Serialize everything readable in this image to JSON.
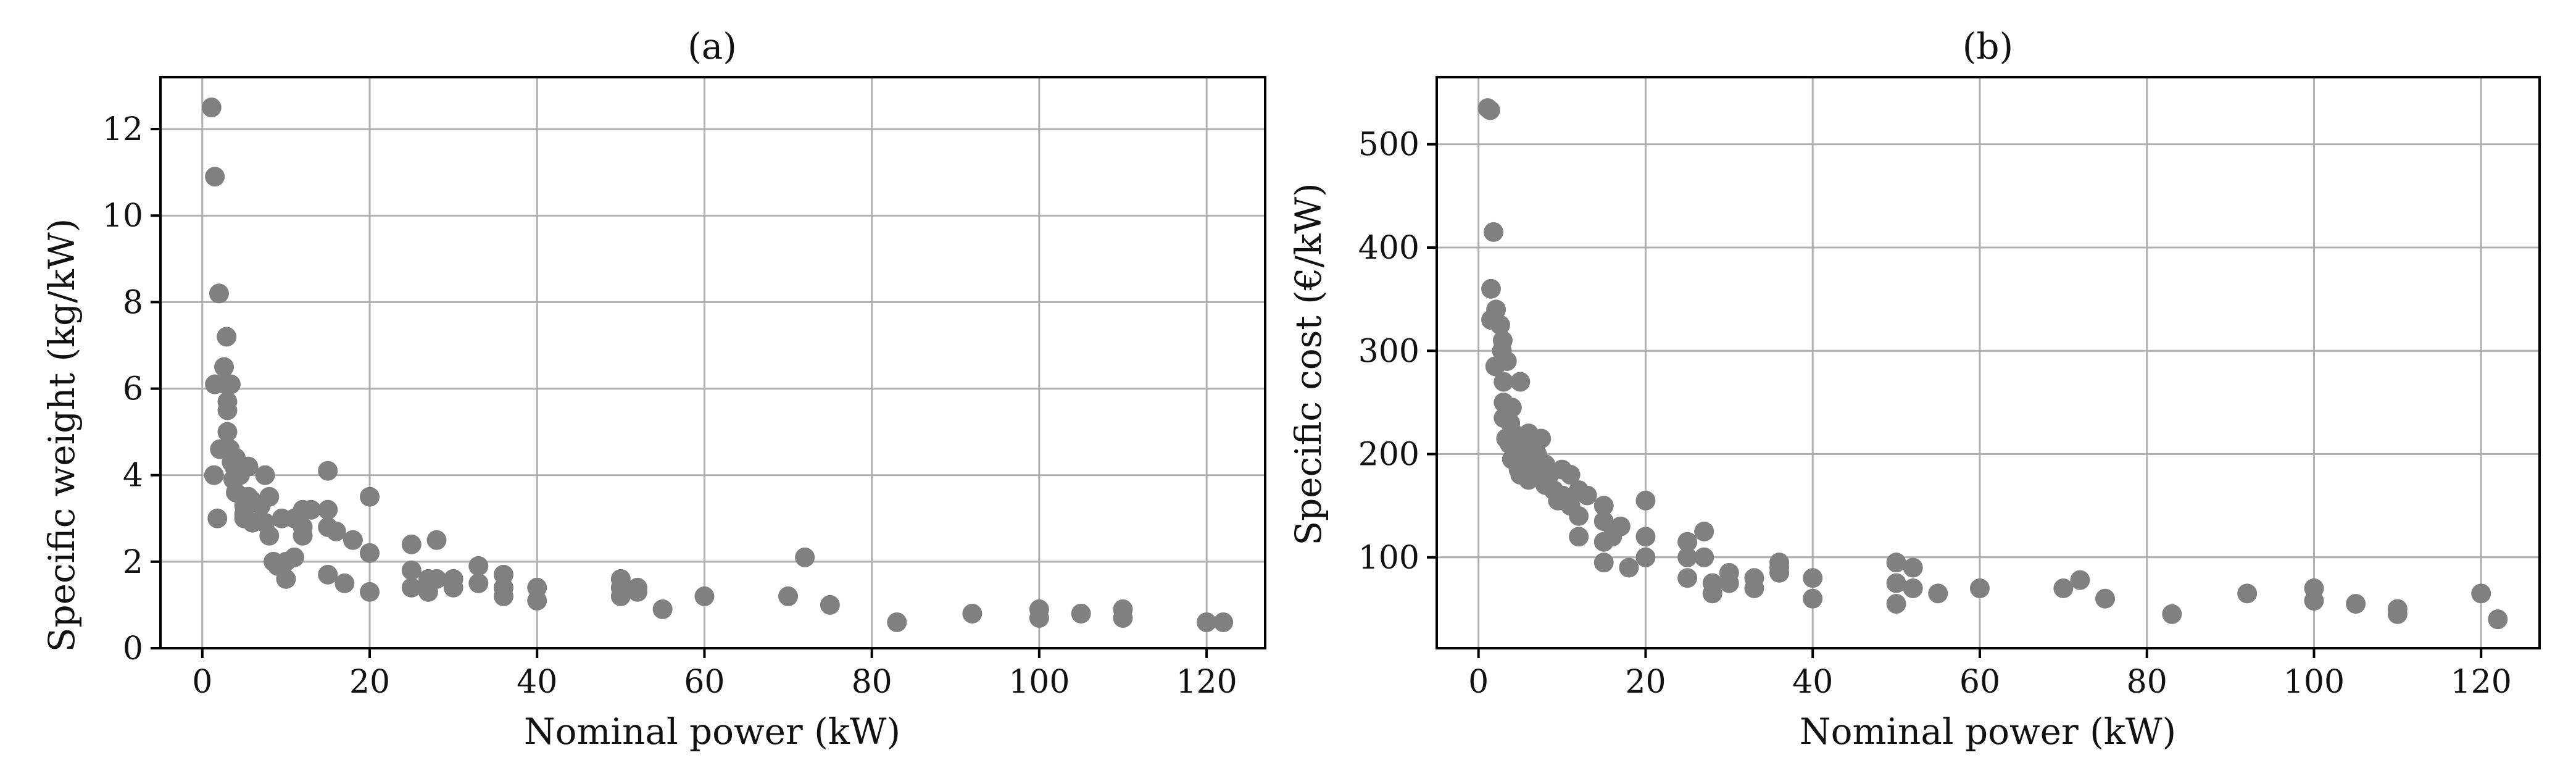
{
  "chart_data": [
    {
      "type": "scatter",
      "title": "(a)",
      "xlabel": "Nominal power (kW)",
      "ylabel": "Specific weight (kg/kW)",
      "xlim": [
        -5,
        127
      ],
      "ylim": [
        0,
        13.2
      ],
      "xticks": [
        0,
        20,
        40,
        60,
        80,
        100,
        120
      ],
      "yticks": [
        0,
        2,
        4,
        6,
        8,
        10,
        12
      ],
      "grid": true,
      "marker_color": "#808080",
      "series": [
        {
          "x": [
            1.1,
            1.4,
            1.5,
            1.5,
            1.8,
            2,
            2.1,
            2.6,
            2.8,
            2.9,
            3,
            3,
            3,
            3.3,
            3.4,
            3.5,
            3.7,
            3.8,
            4,
            4,
            4.2,
            4.5,
            4.8,
            5,
            5,
            5,
            5.5,
            5.5,
            6,
            6,
            7,
            7.5,
            7.5,
            8,
            8,
            8.5,
            9,
            9.5,
            10,
            10,
            11,
            11,
            12,
            12,
            12,
            13,
            15,
            15,
            15,
            15,
            16,
            17,
            18,
            20,
            20,
            20,
            25,
            25,
            25,
            27,
            27,
            28,
            28,
            30,
            30,
            33,
            33,
            36,
            36,
            36,
            40,
            40,
            50,
            50,
            50,
            52,
            52,
            55,
            60,
            70,
            72,
            75,
            83,
            92,
            100,
            100,
            105,
            110,
            110,
            120,
            122
          ],
          "y": [
            12.5,
            4.0,
            10.9,
            6.1,
            3.0,
            8.2,
            4.6,
            6.5,
            6.1,
            7.2,
            5.7,
            5.5,
            5.0,
            4.6,
            6.1,
            4.3,
            3.9,
            4.2,
            4.4,
            3.6,
            4.2,
            4.0,
            3.5,
            3.1,
            3.3,
            3.0,
            4.2,
            3.5,
            2.9,
            3.4,
            3.3,
            4.0,
            2.9,
            2.6,
            3.5,
            2.0,
            1.9,
            3.0,
            2.0,
            1.6,
            3.0,
            2.1,
            3.2,
            2.8,
            2.6,
            3.2,
            4.1,
            3.2,
            2.8,
            1.7,
            2.7,
            1.5,
            2.5,
            3.5,
            2.2,
            1.3,
            2.4,
            1.8,
            1.4,
            1.6,
            1.3,
            2.5,
            1.6,
            1.6,
            1.4,
            1.9,
            1.5,
            1.7,
            1.4,
            1.2,
            1.4,
            1.1,
            1.6,
            1.4,
            1.2,
            1.4,
            1.3,
            0.9,
            1.2,
            1.2,
            2.1,
            1.0,
            0.6,
            0.8,
            0.9,
            0.7,
            0.8,
            0.9,
            0.7,
            0.6,
            0.6
          ]
        }
      ]
    },
    {
      "type": "scatter",
      "title": "(b)",
      "xlabel": "Nominal power (kW)",
      "ylabel": "Specific cost (€/kW)",
      "xlim": [
        -5,
        127
      ],
      "ylim": [
        12,
        565
      ],
      "xticks": [
        0,
        20,
        40,
        60,
        80,
        100,
        120
      ],
      "yticks": [
        100,
        200,
        300,
        400,
        500
      ],
      "grid": true,
      "marker_color": "#808080",
      "series": [
        {
          "x": [
            1.1,
            1.4,
            1.5,
            1.5,
            1.8,
            2,
            2.1,
            2.6,
            2.8,
            2.9,
            3,
            3,
            3,
            3.3,
            3.4,
            3.5,
            3.7,
            3.8,
            4,
            4,
            4.2,
            4.5,
            4.8,
            5,
            5,
            5,
            5.5,
            5.5,
            6,
            6,
            7,
            7.5,
            7.5,
            8,
            8,
            8.5,
            9,
            9.5,
            10,
            10,
            11,
            11,
            12,
            12,
            12,
            13,
            15,
            15,
            15,
            15,
            16,
            17,
            18,
            20,
            20,
            20,
            25,
            25,
            25,
            27,
            27,
            28,
            28,
            30,
            30,
            33,
            33,
            36,
            36,
            36,
            40,
            40,
            50,
            50,
            50,
            52,
            52,
            55,
            60,
            70,
            72,
            75,
            83,
            92,
            100,
            100,
            105,
            110,
            110,
            120,
            122
          ],
          "y": [
            535,
            533,
            330,
            360,
            415,
            285,
            340,
            325,
            300,
            310,
            270,
            250,
            235,
            215,
            290,
            240,
            210,
            230,
            245,
            195,
            220,
            200,
            185,
            270,
            205,
            180,
            210,
            190,
            220,
            175,
            200,
            185,
            215,
            170,
            190,
            180,
            165,
            155,
            185,
            160,
            180,
            150,
            165,
            140,
            120,
            160,
            150,
            135,
            115,
            95,
            120,
            130,
            90,
            155,
            120,
            100,
            80,
            115,
            100,
            125,
            100,
            75,
            65,
            85,
            75,
            80,
            70,
            95,
            85,
            90,
            80,
            60,
            95,
            75,
            55,
            90,
            70,
            65,
            70,
            70,
            78,
            60,
            45,
            65,
            70,
            58,
            55,
            50,
            45,
            65,
            40
          ]
        }
      ]
    }
  ]
}
